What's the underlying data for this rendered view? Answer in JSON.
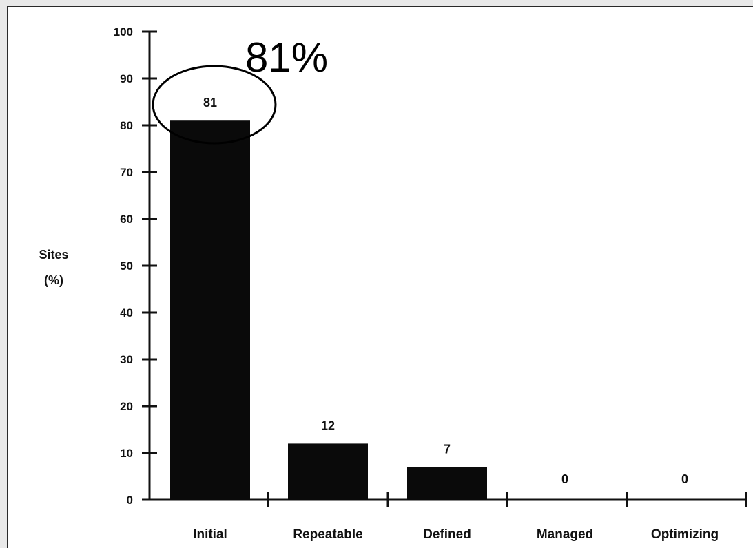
{
  "chart_data": {
    "type": "bar",
    "categories": [
      "Initial",
      "Repeatable",
      "Defined",
      "Managed",
      "Optimizing"
    ],
    "values": [
      81,
      12,
      7,
      0,
      0
    ],
    "data_labels": [
      "81",
      "12",
      "7",
      "0",
      "0"
    ],
    "ylabel_line1": "Sites",
    "ylabel_line2": "(%)",
    "ylim": [
      0,
      100
    ],
    "yticks": [
      0,
      10,
      20,
      30,
      40,
      50,
      60,
      70,
      80,
      90,
      100
    ],
    "grid": false,
    "bar_color": "#0a0a0a",
    "annotation": {
      "text": "81%",
      "target_category": "Initial",
      "shape": "ellipse"
    }
  }
}
